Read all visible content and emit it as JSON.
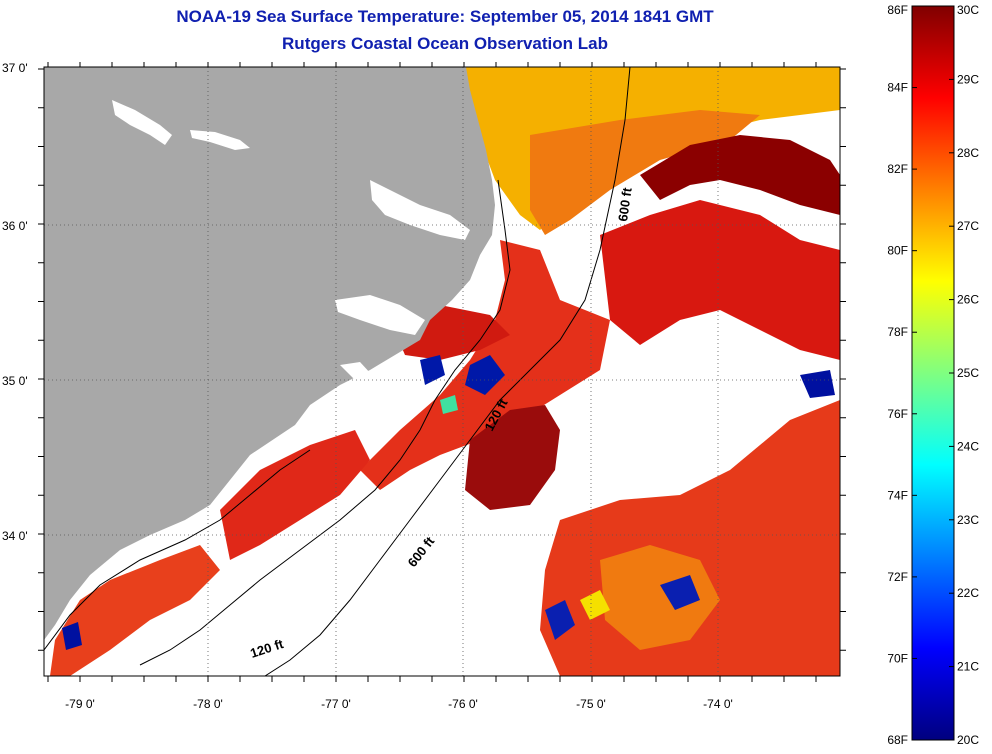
{
  "title": {
    "line1": "NOAA-19 Sea Surface Temperature:  September 05, 2014 1841 GMT",
    "line2": "Rutgers Coastal Ocean Observation Lab"
  },
  "map": {
    "lat_ticks": [
      "37 0'",
      "36 0'",
      "35 0'",
      "34 0'"
    ],
    "lon_ticks": [
      "-79 0'",
      "-78 0'",
      "-77 0'",
      "-76 0'",
      "-75 0'",
      "-74 0'"
    ],
    "contour_labels": {
      "c600_north": "600 ft",
      "c120_mid": "120 ft",
      "c600_south": "600 ft",
      "c120_south": "120 ft"
    },
    "colors": {
      "land": "#a8a8a8",
      "no_data": "#ffffff",
      "sst_hot": "#8b0000",
      "sst_warm": "#e02010",
      "sst_mid": "#f27010",
      "sst_cool": "#f5c000",
      "sst_cold": "#0010a0"
    }
  },
  "colorbar": {
    "f_labels": [
      "86F",
      "84F",
      "82F",
      "80F",
      "78F",
      "76F",
      "74F",
      "72F",
      "70F",
      "68F"
    ],
    "c_labels": [
      "30C",
      "29C",
      "28C",
      "27C",
      "26C",
      "25C",
      "24C",
      "23C",
      "22C",
      "21C",
      "20C"
    ],
    "stops": [
      "#00007f",
      "#0000ff",
      "#0080ff",
      "#00ffff",
      "#80ff80",
      "#ffff00",
      "#ff8000",
      "#ff0000",
      "#800000"
    ]
  }
}
